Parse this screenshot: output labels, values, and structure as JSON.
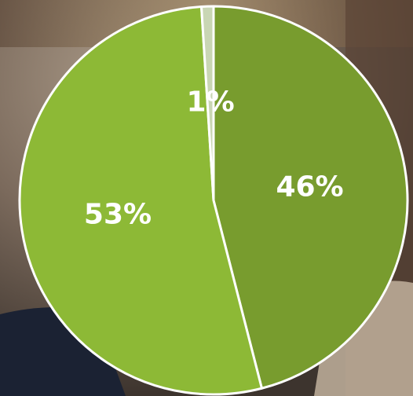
{
  "chart_data": {
    "type": "pie",
    "categories": [
      null,
      null,
      null
    ],
    "values": [
      46,
      53,
      1
    ],
    "value_labels": [
      "46%",
      "53%",
      "1%"
    ],
    "colors": [
      "#789c2e",
      "#8db936",
      "#c9d6b4"
    ]
  }
}
